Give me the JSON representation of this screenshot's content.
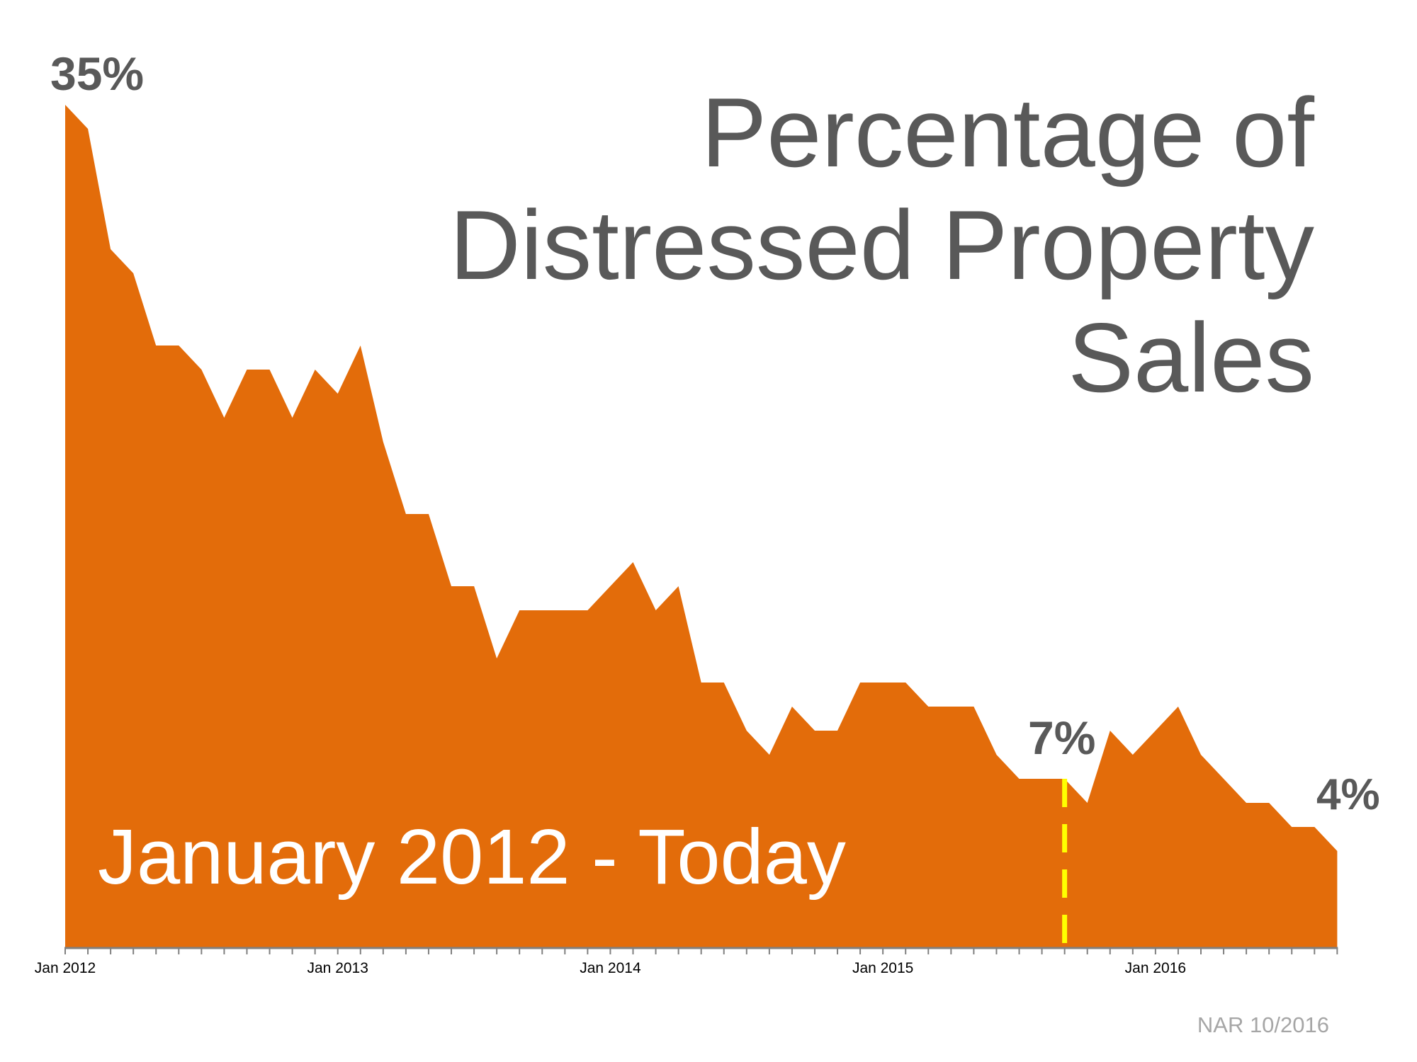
{
  "title": {
    "lines": [
      "Percentage of",
      "Distressed Property",
      "Sales"
    ]
  },
  "callouts": {
    "start": "35%",
    "marker": "7%",
    "end": "4%"
  },
  "range_label": "January 2012 - Today",
  "source": "NAR 10/2016",
  "colors": {
    "area": "#E36C0A",
    "text": "#595959",
    "marker": "#FFFF00",
    "axis": "#808080",
    "source": "#A6A6A6"
  },
  "chart_data": {
    "type": "area",
    "title": "Percentage of Distressed Property Sales",
    "subtitle": "January 2012 - Today",
    "xlabel": "",
    "ylabel": "",
    "ylim": [
      0,
      35
    ],
    "grid": false,
    "legend": "none",
    "x_tick_labels": [
      "Jan 2012",
      "Jan 2013",
      "Jan 2014",
      "Jan 2015",
      "Jan 2016"
    ],
    "x_tick_indices": [
      0,
      12,
      24,
      36,
      48
    ],
    "x_start": "Jan 2012",
    "x_end": "Sep 2016",
    "frequency": "monthly",
    "values": [
      35,
      34,
      29,
      28,
      25,
      25,
      24,
      22,
      24,
      24,
      22,
      24,
      23,
      25,
      21,
      18,
      18,
      15,
      15,
      12,
      14,
      14,
      14,
      14,
      15,
      16,
      14,
      15,
      11,
      11,
      9,
      8,
      10,
      9,
      9,
      11,
      11,
      11,
      10,
      10,
      10,
      8,
      7,
      7,
      7,
      6,
      9,
      8,
      9,
      10,
      8,
      7,
      6,
      6,
      5,
      5,
      4
    ],
    "annotations": [
      {
        "index": 0,
        "label": "35%"
      },
      {
        "index": 44,
        "label": "7%",
        "marker": "yellow dashed vertical line (Sep 2015)"
      },
      {
        "index": 56,
        "label": "4%"
      }
    ],
    "source": "NAR 10/2016"
  }
}
